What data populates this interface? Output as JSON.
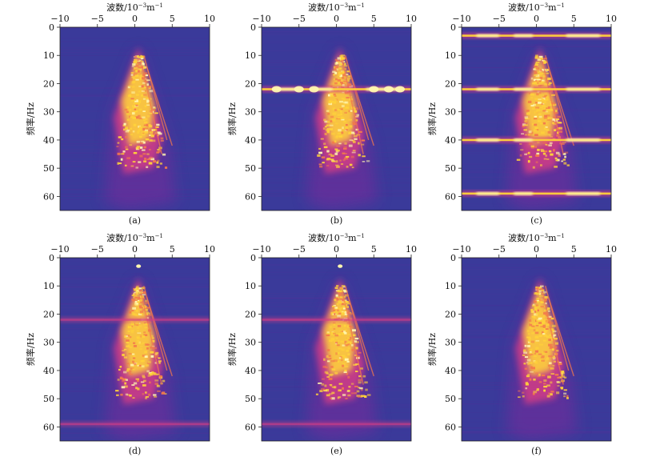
{
  "figure": {
    "xlabel_html": [
      "波数/10",
      "−3",
      "m",
      "−1"
    ],
    "ylabel": "频率/Hz"
  },
  "chart_data": [
    {
      "type": "heatmap",
      "panel_label": "(a)",
      "x_ticks": [
        -10,
        -5,
        0,
        5,
        10
      ],
      "y_ticks": [
        0,
        10,
        20,
        30,
        40,
        50,
        60
      ],
      "xlim": [
        -10,
        10
      ],
      "ylim": [
        0,
        65
      ],
      "y_inverted": true,
      "xlabel": "波数/10−3m−1",
      "ylabel": "频率/Hz",
      "colormap": [
        "#3a3a9a",
        "#7a2a9c",
        "#d23d86",
        "#f37a4b",
        "#ffd23a",
        "#fff7b0"
      ],
      "background_color": "#3a3a9a",
      "features": {
        "cone_apex": [
          0.5,
          7
        ],
        "cone_left_edge_at_65": -4,
        "cone_right_edge_at_40": 4.5,
        "horizontal_noise_lines_hz": [],
        "point_noise_hz": []
      }
    },
    {
      "type": "heatmap",
      "panel_label": "(b)",
      "x_ticks": [
        -10,
        -5,
        0,
        5,
        10
      ],
      "y_ticks": [
        0,
        10,
        20,
        30,
        40,
        50,
        60
      ],
      "xlim": [
        -10,
        10
      ],
      "ylim": [
        0,
        65
      ],
      "y_inverted": true,
      "xlabel": "波数/10−3m−1",
      "ylabel": "频率/Hz",
      "colormap": [
        "#3a3a9a",
        "#7a2a9c",
        "#d23d86",
        "#f37a4b",
        "#ffd23a",
        "#fff7b0"
      ],
      "background_color": "#3a3a9a",
      "features": {
        "cone_apex": [
          0.5,
          7
        ],
        "horizontal_noise_lines_hz": [
          22
        ],
        "blobs_on_line_wavenumber": [
          -8,
          -5,
          -3,
          5,
          7,
          8.5
        ],
        "point_noise_hz": []
      }
    },
    {
      "type": "heatmap",
      "panel_label": "(c)",
      "x_ticks": [
        -10,
        -5,
        0,
        5,
        10
      ],
      "y_ticks": [
        0,
        10,
        20,
        30,
        40,
        50,
        60
      ],
      "xlim": [
        -10,
        10
      ],
      "ylim": [
        0,
        65
      ],
      "y_inverted": true,
      "xlabel": "波数/10−3m−1",
      "ylabel": "频率/Hz",
      "colormap": [
        "#3a3a9a",
        "#7a2a9c",
        "#d23d86",
        "#f37a4b",
        "#ffd23a",
        "#fff7b0"
      ],
      "background_color": "#3a3a9a",
      "features": {
        "cone_apex": [
          0.5,
          7
        ],
        "horizontal_noise_lines_hz": [
          3,
          22,
          40,
          59
        ],
        "point_noise_hz": []
      }
    },
    {
      "type": "heatmap",
      "panel_label": "(d)",
      "x_ticks": [
        -10,
        -5,
        0,
        5,
        10
      ],
      "y_ticks": [
        0,
        10,
        20,
        30,
        40,
        50,
        60
      ],
      "xlim": [
        -10,
        10
      ],
      "ylim": [
        0,
        65
      ],
      "y_inverted": true,
      "xlabel": "波数/10−3m−1",
      "ylabel": "频率/Hz",
      "colormap": [
        "#3a3a9a",
        "#7a2a9c",
        "#d23d86",
        "#f37a4b",
        "#ffd23a",
        "#fff7b0"
      ],
      "background_color": "#3a3a9a",
      "features": {
        "cone_apex": [
          0.5,
          7
        ],
        "horizontal_noise_lines_hz": [
          22,
          59
        ],
        "point_noise_hz": [
          3
        ]
      }
    },
    {
      "type": "heatmap",
      "panel_label": "(e)",
      "x_ticks": [
        -10,
        -5,
        0,
        5,
        10
      ],
      "y_ticks": [
        0,
        10,
        20,
        30,
        40,
        50,
        60
      ],
      "xlim": [
        -10,
        10
      ],
      "ylim": [
        0,
        65
      ],
      "y_inverted": true,
      "xlabel": "波数/10−3m−1",
      "ylabel": "频率/Hz",
      "colormap": [
        "#3a3a9a",
        "#7a2a9c",
        "#d23d86",
        "#f37a4b",
        "#ffd23a",
        "#fff7b0"
      ],
      "background_color": "#3a3a9a",
      "features": {
        "cone_apex": [
          0.5,
          7
        ],
        "horizontal_noise_lines_hz": [
          22,
          59
        ],
        "point_noise_hz": [
          3
        ]
      }
    },
    {
      "type": "heatmap",
      "panel_label": "(f)",
      "x_ticks": [
        -10,
        -5,
        0,
        5,
        10
      ],
      "y_ticks": [
        0,
        10,
        20,
        30,
        40,
        50,
        60
      ],
      "xlim": [
        -10,
        10
      ],
      "ylim": [
        0,
        65
      ],
      "y_inverted": true,
      "xlabel": "波数/10−3m−1",
      "ylabel": "频率/Hz",
      "colormap": [
        "#3a3a9a",
        "#7a2a9c",
        "#d23d86",
        "#f37a4b",
        "#ffd23a",
        "#fff7b0"
      ],
      "background_color": "#3a3a9a",
      "features": {
        "cone_apex": [
          0.5,
          7
        ],
        "horizontal_noise_lines_hz": [],
        "point_noise_hz": []
      }
    }
  ]
}
